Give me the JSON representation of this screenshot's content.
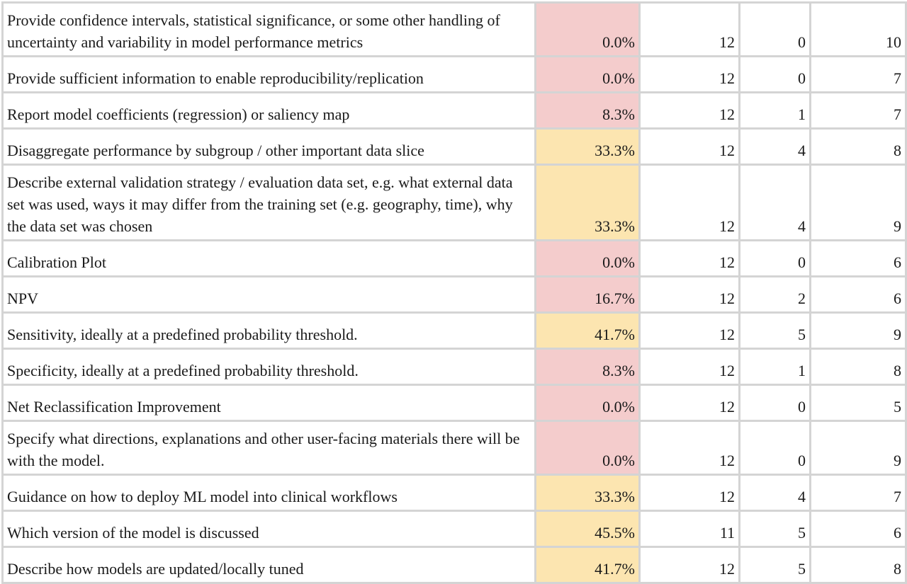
{
  "table": {
    "colors": {
      "low": "#f4cccc",
      "mid": "#fce5b0",
      "border": "#d4d4d4"
    },
    "rows": [
      {
        "description": "Provide confidence intervals, statistical significance, or some other handling of uncertainty and variability in model performance metrics",
        "percent": "0.0%",
        "level": "red",
        "n": "12",
        "count": "0",
        "total": "10",
        "height": 76
      },
      {
        "description": "Provide sufficient information to enable reproducibility/replication",
        "percent": "0.0%",
        "level": "red",
        "n": "12",
        "count": "0",
        "total": "7",
        "height": 51
      },
      {
        "description": "Report model coefficients (regression) or saliency map",
        "percent": "8.3%",
        "level": "red",
        "n": "12",
        "count": "1",
        "total": "7",
        "height": 51
      },
      {
        "description": "Disaggregate performance by subgroup / other important data slice",
        "percent": "33.3%",
        "level": "yellow",
        "n": "12",
        "count": "4",
        "total": "8",
        "height": 51
      },
      {
        "description": "Describe external validation strategy / evaluation data set, e.g. what external data set was used, ways it may differ from the training set (e.g. geography, time), why the data set was chosen",
        "percent": "33.3%",
        "level": "yellow",
        "n": "12",
        "count": "4",
        "total": "9",
        "height": 107
      },
      {
        "description": "Calibration Plot",
        "percent": "0.0%",
        "level": "red",
        "n": "12",
        "count": "0",
        "total": "6",
        "height": 51
      },
      {
        "description": "NPV",
        "percent": "16.7%",
        "level": "red",
        "n": "12",
        "count": "2",
        "total": "6",
        "height": 51
      },
      {
        "description": "Sensitivity, ideally at a predefined probability threshold.",
        "percent": "41.7%",
        "level": "yellow",
        "n": "12",
        "count": "5",
        "total": "9",
        "height": 51
      },
      {
        "description": "Specificity, ideally at a predefined probability threshold.",
        "percent": "8.3%",
        "level": "red",
        "n": "12",
        "count": "1",
        "total": "8",
        "height": 51
      },
      {
        "description": "Net Reclassification Improvement",
        "percent": "0.0%",
        "level": "red",
        "n": "12",
        "count": "0",
        "total": "5",
        "height": 51
      },
      {
        "description": "Specify what directions, explanations and other user-facing materials there will be with the model.",
        "percent": "0.0%",
        "level": "red",
        "n": "12",
        "count": "0",
        "total": "9",
        "height": 76
      },
      {
        "description": "Guidance on how to deploy ML model into clinical workflows",
        "percent": "33.3%",
        "level": "yellow",
        "n": "12",
        "count": "4",
        "total": "7",
        "height": 51
      },
      {
        "description": "Which version of the model is discussed",
        "percent": "45.5%",
        "level": "yellow",
        "n": "11",
        "count": "5",
        "total": "6",
        "height": 51
      },
      {
        "description": "Describe how models are updated/locally tuned",
        "percent": "41.7%",
        "level": "yellow",
        "n": "12",
        "count": "5",
        "total": "8",
        "height": 51
      }
    ]
  }
}
